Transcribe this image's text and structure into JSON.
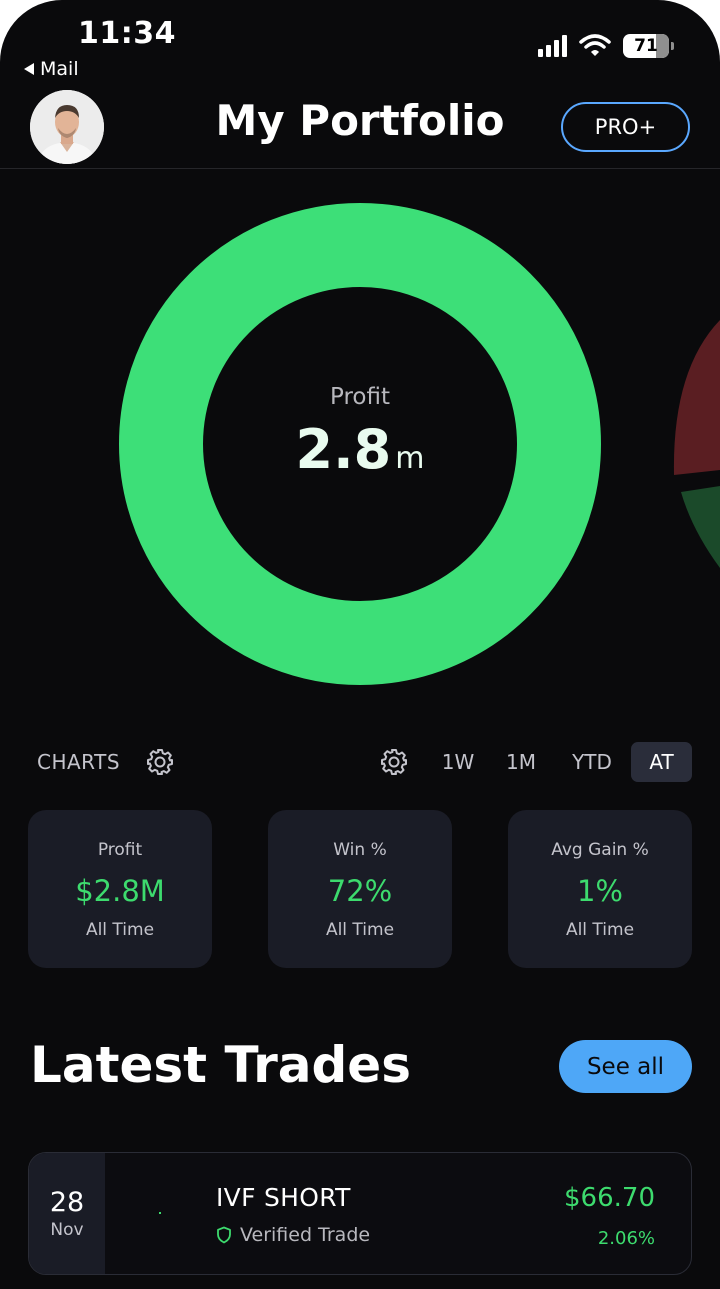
{
  "status_bar": {
    "time": "11:34",
    "back_app": "Mail",
    "battery": "71"
  },
  "header": {
    "title": "My Portfolio",
    "pro_button": "PRO+"
  },
  "donut": {
    "label": "Profit",
    "value": "2.8",
    "unit": "m",
    "color": "#3ddf78"
  },
  "charts": {
    "label": "CHARTS",
    "periods": [
      "1W",
      "1M",
      "YTD",
      "AT"
    ],
    "selected_period": "AT"
  },
  "stats": [
    {
      "label": "Profit",
      "value": "$2.8M",
      "sub": "All Time"
    },
    {
      "label": "Win %",
      "value": "72%",
      "sub": "All Time"
    },
    {
      "label": "Avg Gain %",
      "value": "1%",
      "sub": "All Time"
    }
  ],
  "latest_trades": {
    "title": "Latest Trades",
    "see_all": "See all",
    "items": [
      {
        "day": "28",
        "month": "Nov",
        "name": "IVF SHORT",
        "verified_label": "Verified Trade",
        "amount": "$66.70",
        "percent": "2.06%"
      }
    ]
  },
  "colors": {
    "accent_green": "#3ddb6e",
    "accent_blue": "#4ea7f7",
    "background": "#0a0a0c",
    "card": "#1a1c26"
  }
}
